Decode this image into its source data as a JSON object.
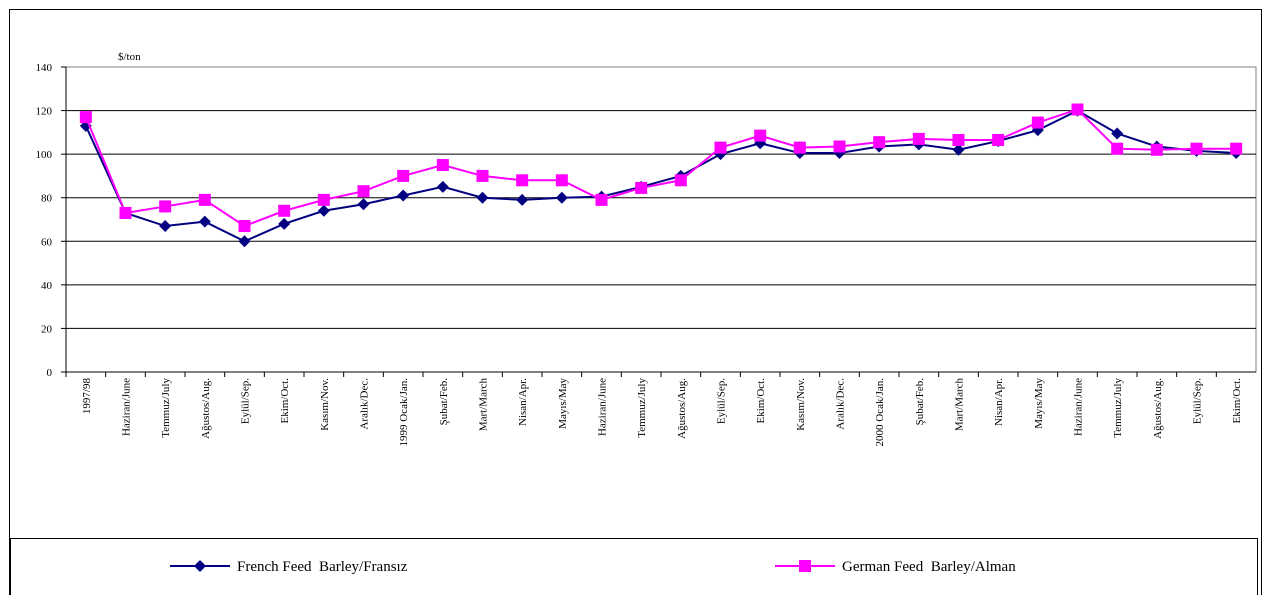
{
  "chart_data": {
    "type": "line",
    "y_label": "$/ton",
    "categories": [
      "1997/98",
      "Haziran/June",
      "Temmuz/July",
      "Ağustos/Aug.",
      "Eylül/Sep.",
      "Ekim/Oct.",
      "Kasım/Nov.",
      "Aralık/Dec.",
      "1999 Ocak/Jan.",
      "Şubat/Feb.",
      "Mart/March",
      "Nisan/Apr.",
      "Mayıs/May",
      "Haziran/June",
      "Temmuz/July",
      "Ağustos/Aug.",
      "Eylül/Sep.",
      "Ekim/Oct.",
      "Kasım/Nov.",
      "Aralık/Dec.",
      "2000 Ocak/Jan.",
      "Şubat/Feb.",
      "Mart/March",
      "Nisan/Apr.",
      "Mayıs/May",
      "Haziran/June",
      "Temmuz/July",
      "Ağustos/Aug.",
      "Eylül/Sep.",
      "Ekim/Oct."
    ],
    "series": [
      {
        "name": "French Feed  Barley/Fransız",
        "color": "#000080",
        "marker": "diamond",
        "values": [
          113,
          73,
          67,
          69,
          60,
          68,
          74,
          77,
          81,
          85,
          80,
          79,
          80,
          80.5,
          85,
          90,
          100,
          105,
          100.5,
          100.5,
          103.5,
          104.5,
          102,
          106,
          111,
          120,
          109.5,
          103.5,
          101.5,
          100.5
        ]
      },
      {
        "name": "German Feed  Barley/Alman",
        "color": "#ff00ff",
        "marker": "square",
        "values": [
          117,
          73,
          76,
          79,
          67,
          74,
          79,
          83,
          90,
          95,
          90,
          88,
          88,
          79,
          84.5,
          88,
          103,
          108.5,
          103,
          103.5,
          105.5,
          107,
          106.5,
          106.5,
          114.5,
          120.5,
          102.5,
          102,
          102.5,
          102.5
        ]
      }
    ],
    "ylim": [
      0,
      140
    ],
    "yticks": [
      0,
      20,
      40,
      60,
      80,
      100,
      120,
      140
    ],
    "grid": true,
    "legend": "bottom"
  }
}
